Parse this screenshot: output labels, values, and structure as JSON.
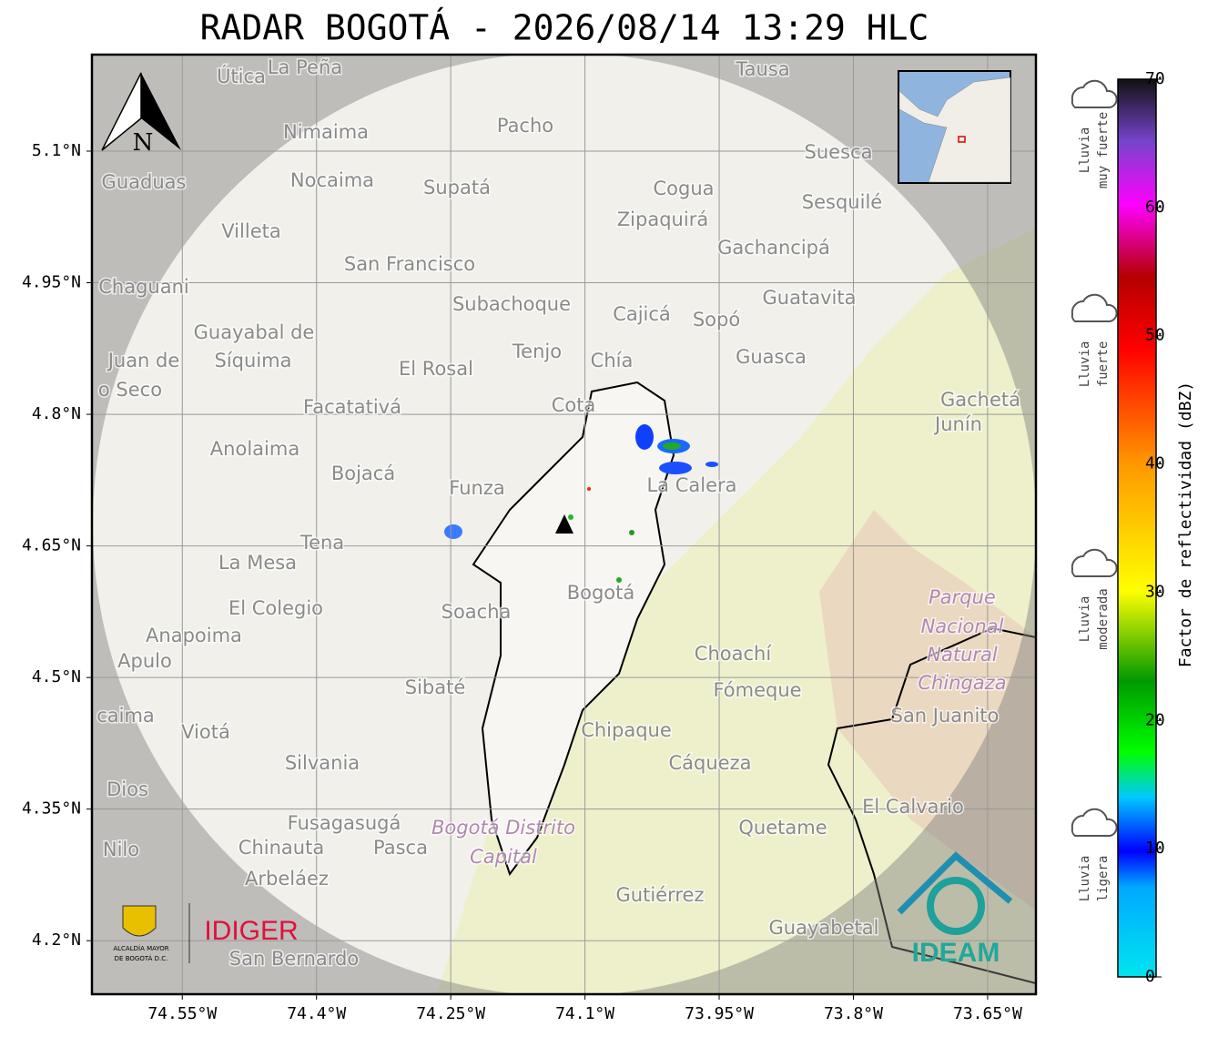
{
  "title": "RADAR BOGOTÁ - 2026/08/14 13:29 HLC",
  "map": {
    "xlim": [
      -74.651,
      -73.596
    ],
    "ylim": [
      4.139,
      5.21
    ],
    "xticks": [
      {
        "value": -74.55,
        "label": "74.55°W"
      },
      {
        "value": -74.4,
        "label": "74.4°W"
      },
      {
        "value": -74.25,
        "label": "74.25°W"
      },
      {
        "value": -74.1,
        "label": "74.1°W"
      },
      {
        "value": -73.95,
        "label": "73.95°W"
      },
      {
        "value": -73.8,
        "label": "73.8°W"
      },
      {
        "value": -73.65,
        "label": "73.65°W"
      }
    ],
    "yticks": [
      {
        "value": 5.1,
        "label": "5.1°N"
      },
      {
        "value": 4.95,
        "label": "4.95°N"
      },
      {
        "value": 4.8,
        "label": "4.8°N"
      },
      {
        "value": 4.65,
        "label": "4.65°N"
      },
      {
        "value": 4.5,
        "label": "4.5°N"
      },
      {
        "value": 4.35,
        "label": "4.35°N"
      },
      {
        "value": 4.2,
        "label": "4.2°N"
      }
    ],
    "north": "N",
    "places": [
      "Útica",
      "La Peña",
      "Tausa",
      "Pacho",
      "Nimaima",
      "Guaduas",
      "Nocaima",
      "Supatá",
      "Cogua",
      "Suesca",
      "Sesquilé",
      "Zipaquirá",
      "Villeta",
      "Gachancipá",
      "San Francisco",
      "Chaguani",
      "Guatavita",
      "Subachoque",
      "Cajicá",
      "Sopó",
      "Guayabal de",
      "Síquima",
      "Tenjo",
      "Chía",
      "Guasca",
      "Juan de",
      "o Seco",
      "El Rosal",
      "Facatativá",
      "Cota",
      "Gachetá",
      "Junín",
      "Anolaima",
      "Bojacá",
      "Funza",
      "La Calera",
      "Tena",
      "La Mesa",
      "Bogotá",
      "Parque",
      "Nacional",
      "Natural",
      "Chingaza",
      "El Colegio",
      "Soacha",
      "Anapoima",
      "Apulo",
      "Choachí",
      "Sibaté",
      "Fómeque",
      "San Juanito",
      "caima",
      "Viotá",
      "Chipaque",
      "Silvania",
      "Cáqueza",
      "Dios",
      "El Calvario",
      "Fusagasugá",
      "Bogotá Distrito",
      "Quetame",
      "Nilo",
      "Chinauta",
      "Pasca",
      "Capital",
      "Arbeláez",
      "Gutiérrez",
      "Guayabetal",
      "San Bernardo"
    ],
    "logos": {
      "alcaldia": [
        "ALCALDÍA MAYOR",
        "DE BOGOTÁ D.C."
      ],
      "idiger": "IDIGER",
      "ideam": "IDEAM"
    }
  },
  "colorbar": {
    "label": "Factor de reflectividad (dBZ)",
    "lim": [
      0,
      70
    ],
    "ticks": [
      0,
      10,
      20,
      30,
      40,
      50,
      60,
      70
    ]
  },
  "rain_levels": [
    [
      "Lluvia",
      "muy fuerte"
    ],
    [
      "Lluvia",
      "fuerte"
    ],
    [
      "Lluvia",
      "moderada"
    ],
    [
      "Lluvia",
      "ligera"
    ]
  ]
}
